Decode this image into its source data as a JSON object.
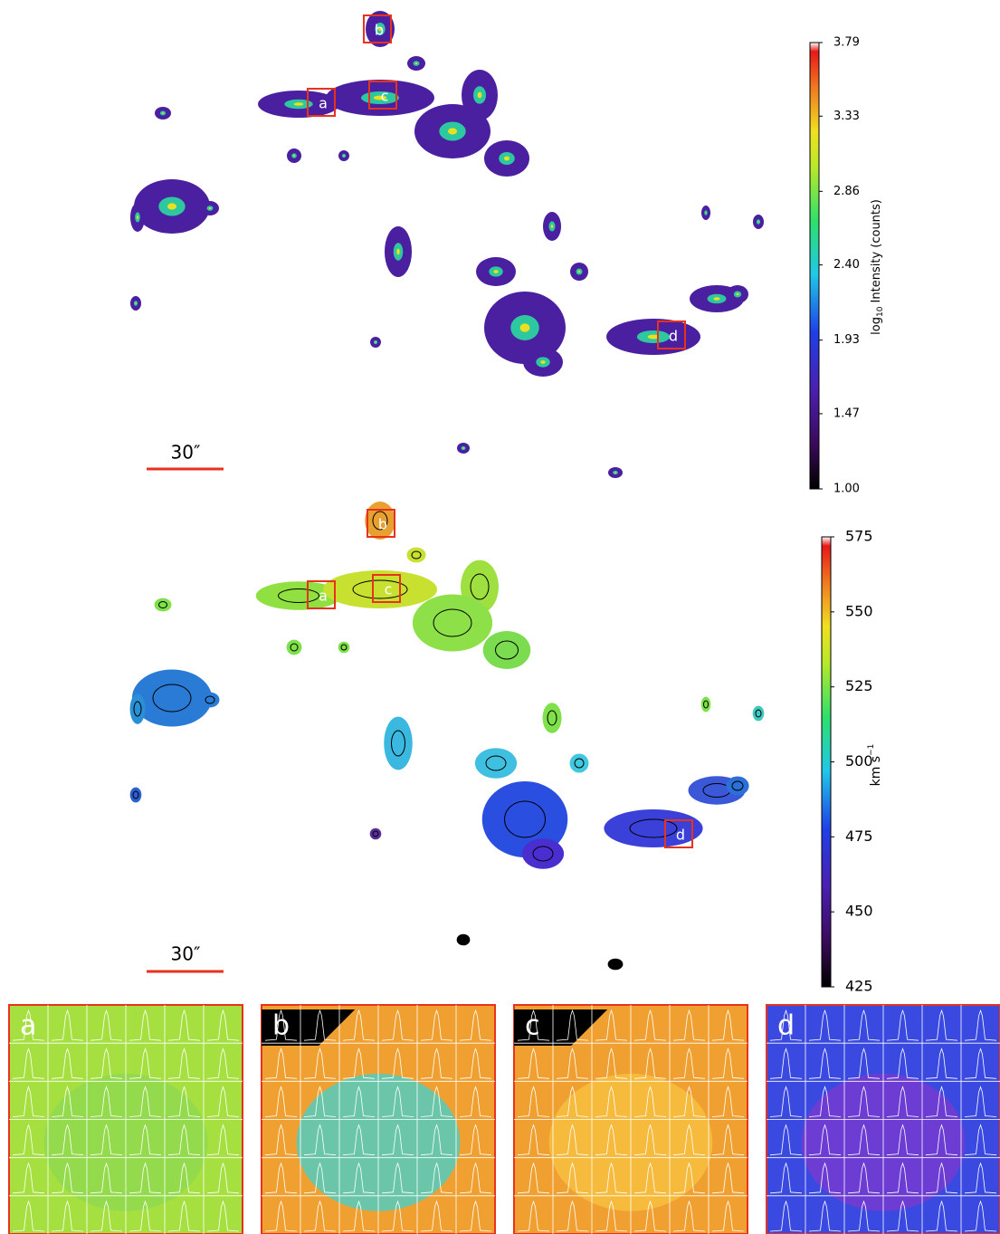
{
  "intensity_map": {
    "boxes": [
      "a",
      "b",
      "c",
      "d"
    ],
    "scale_bar": "30″",
    "colorbar": {
      "label_pre": "log",
      "label_sub": "10",
      "label_post": " Intensity (counts)",
      "lim": [
        1,
        3.79
      ],
      "ticks": [
        3.79,
        3.33,
        2.86,
        {
          "value": 2.4,
          "label": "2.40"
        },
        1.93,
        1.47,
        {
          "value": 1,
          "label": "1.00"
        }
      ]
    }
  },
  "velocity_map": {
    "boxes": [
      "a",
      "b",
      "c",
      "d"
    ],
    "scale_bar": "30″",
    "colorbar": {
      "label": "km s",
      "label_exp": "−1",
      "lim": [
        425,
        575
      ],
      "ticks": [
        575,
        550,
        525,
        500,
        475,
        450,
        425
      ]
    }
  },
  "zoom_panels": [
    "a",
    "b",
    "c",
    "d"
  ]
}
